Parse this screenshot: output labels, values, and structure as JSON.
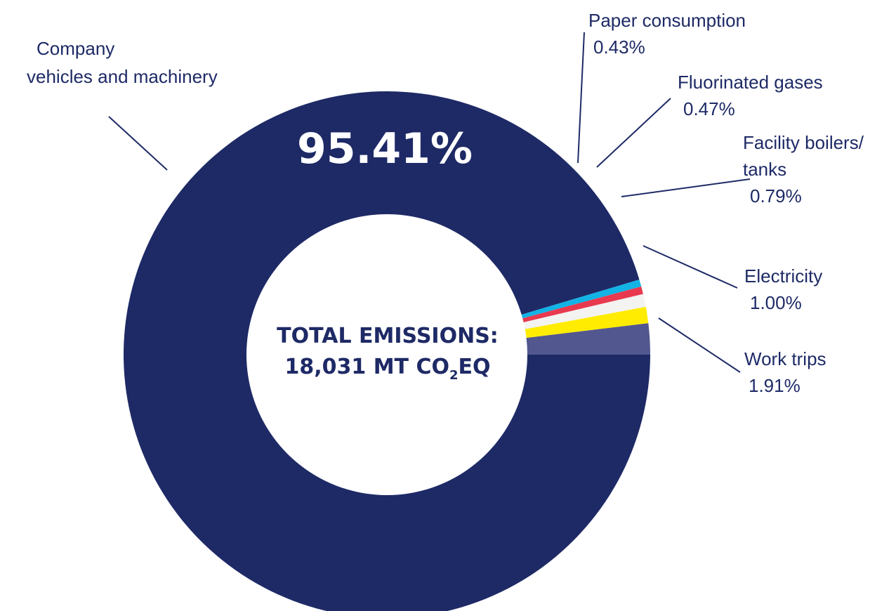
{
  "chart_data": {
    "type": "pie",
    "colors": {
      "navy": "#1e2a66",
      "slate": "#53578f",
      "yellow": "#ffec00",
      "offwhite": "#f3f3f1",
      "red": "#e8394f",
      "cyan": "#12b3e5",
      "text": "#1e2a66"
    },
    "slices": [
      {
        "label_line1": "Company",
        "label_line2": "vehicles and machinery",
        "value": 95.41,
        "value_text": "95.41%",
        "color": "#1e2a66"
      },
      {
        "label_line1": "Work trips",
        "label_line2": "",
        "value": 1.91,
        "value_text": "1.91%",
        "color": "#53578f"
      },
      {
        "label_line1": "Electricity",
        "label_line2": "",
        "value": 1.0,
        "value_text": "1.00%",
        "color": "#ffec00"
      },
      {
        "label_line1": "Facility boilers/",
        "label_line2": "tanks",
        "value": 0.79,
        "value_text": "0.79%",
        "color": "#f3f3f1"
      },
      {
        "label_line1": "Fluorinated gases",
        "label_line2": "",
        "value": 0.47,
        "value_text": "0.47%",
        "color": "#e8394f"
      },
      {
        "label_line1": "Paper consumption",
        "label_line2": "",
        "value": 0.43,
        "value_text": "0.43%",
        "color": "#12b3e5"
      }
    ],
    "center": {
      "line1": "TOTAL EMISSIONS:",
      "line2_prefix": "18,031 MT CO",
      "line2_sub": "2",
      "line2_suffix": "EQ"
    }
  }
}
